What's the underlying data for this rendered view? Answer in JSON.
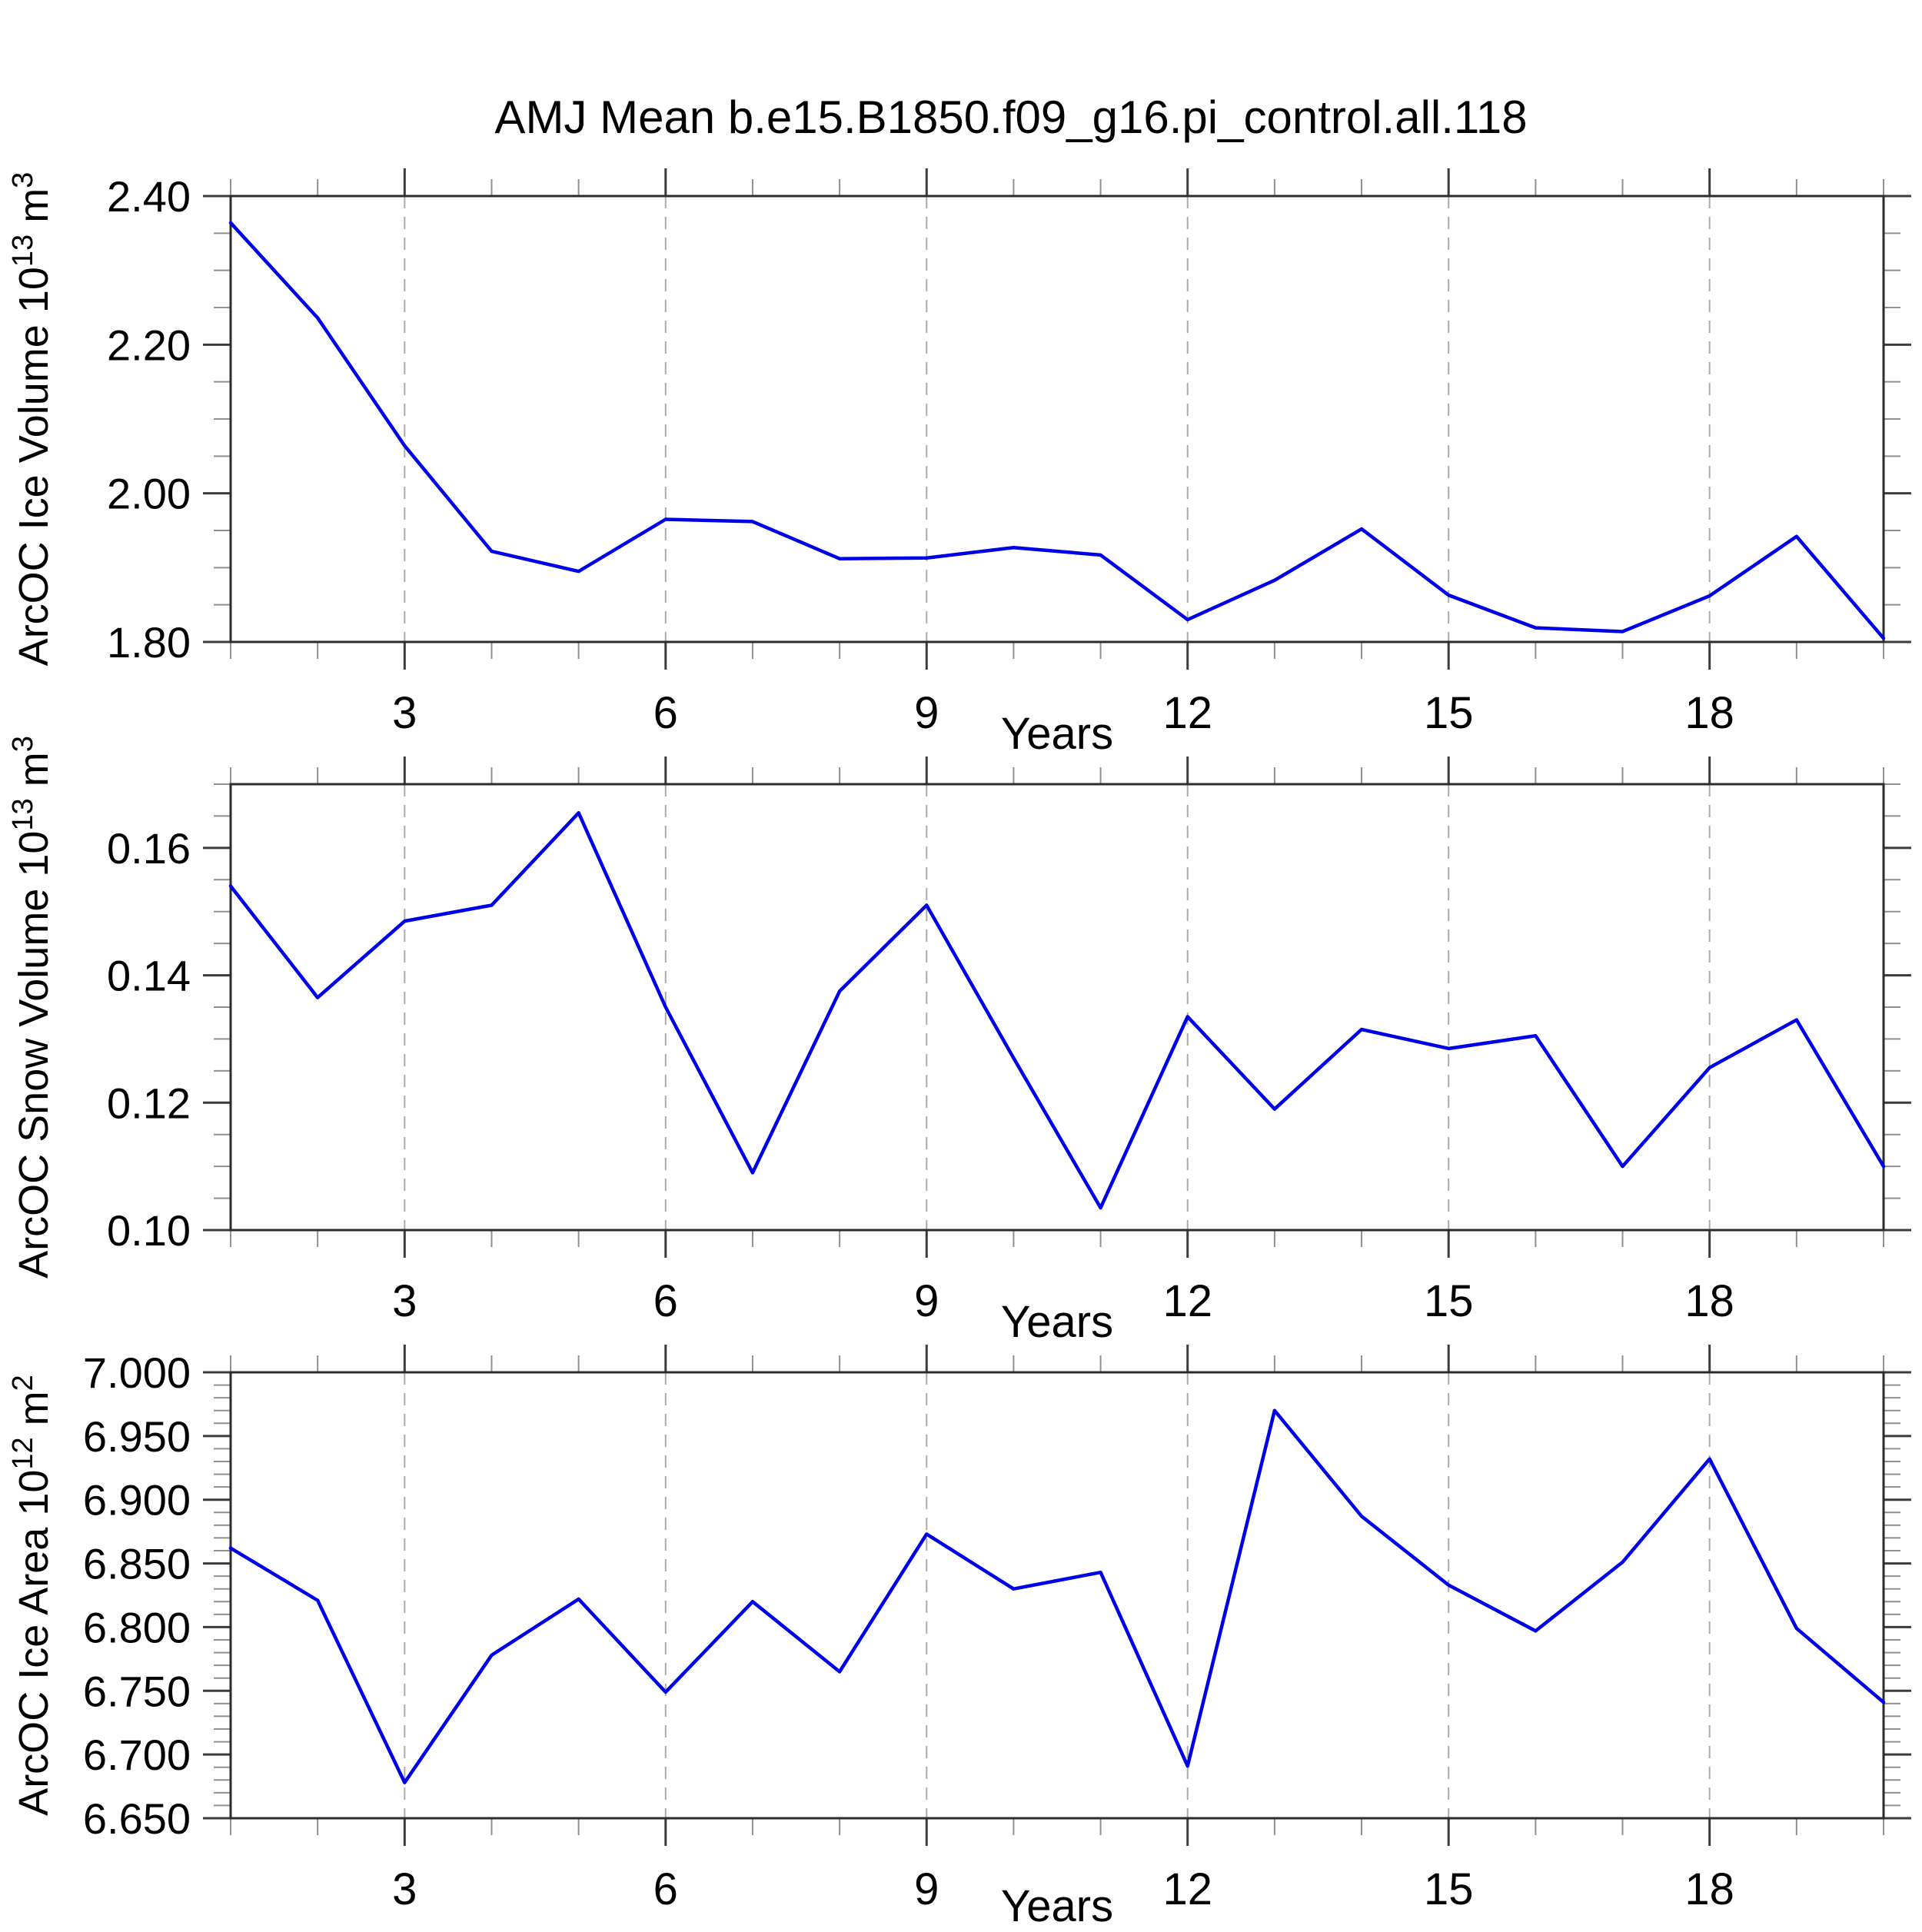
{
  "title": "AMJ Mean b.e15.B1850.f09_g16.pi_control.all.118",
  "style": {
    "line_color": "#0000e8",
    "frame_color": "#2c2c2c",
    "major_tick_color": "#3c3c3c",
    "minor_tick_color": "#909090",
    "grid_color": "#ababab",
    "text_color": "#000000",
    "background": "#ffffff"
  },
  "chart_data": [
    {
      "type": "line",
      "panel": "top",
      "xlabel": "Years",
      "ylabel_parts": {
        "pre": "ArcOC Ice Volume 10",
        "sup": "13",
        "mid": " m",
        "sup2": "3"
      },
      "x": [
        1,
        2,
        3,
        4,
        5,
        6,
        7,
        8,
        9,
        10,
        11,
        12,
        13,
        14,
        15,
        16,
        17,
        18,
        19,
        20
      ],
      "values": [
        2.364,
        2.236,
        2.064,
        1.922,
        1.895,
        1.965,
        1.962,
        1.912,
        1.913,
        1.927,
        1.917,
        1.83,
        1.883,
        1.952,
        1.863,
        1.819,
        1.814,
        1.862,
        1.942,
        1.805
      ],
      "xlim": [
        1,
        20
      ],
      "ylim": [
        1.8,
        2.4
      ],
      "xticks_major": [
        3,
        6,
        9,
        12,
        15,
        18
      ],
      "xtick_minor_step": 1,
      "yticks_major": [
        {
          "v": 2.4,
          "label": "2.40"
        },
        {
          "v": 2.2,
          "label": "2.20"
        },
        {
          "v": 2.0,
          "label": "2.00"
        },
        {
          "v": 1.8,
          "label": "1.80"
        }
      ],
      "ytick_minor_step": 0.05,
      "grid": "vertical-dashed",
      "legend": "none"
    },
    {
      "type": "line",
      "panel": "middle",
      "xlabel": "Years",
      "ylabel_parts": {
        "pre": "ArcOC Snow Volume 10",
        "sup": "13",
        "mid": " m",
        "sup2": "3"
      },
      "x": [
        1,
        2,
        3,
        4,
        5,
        6,
        7,
        8,
        9,
        10,
        11,
        12,
        13,
        14,
        15,
        16,
        17,
        18,
        19,
        20
      ],
      "values": [
        0.154,
        0.1365,
        0.1485,
        0.151,
        0.1655,
        0.135,
        0.109,
        0.1375,
        0.151,
        0.127,
        0.1035,
        0.1335,
        0.119,
        0.1315,
        0.1285,
        0.1305,
        0.11,
        0.1255,
        0.133,
        0.11
      ],
      "xlim": [
        1,
        20
      ],
      "ylim": [
        0.1,
        0.17
      ],
      "xticks_major": [
        3,
        6,
        9,
        12,
        15,
        18
      ],
      "xtick_minor_step": 1,
      "yticks_major": [
        {
          "v": 0.16,
          "label": "0.16"
        },
        {
          "v": 0.14,
          "label": "0.14"
        },
        {
          "v": 0.12,
          "label": "0.12"
        },
        {
          "v": 0.1,
          "label": "0.10"
        }
      ],
      "ytick_minor_step": 0.005,
      "grid": "vertical-dashed",
      "legend": "none"
    },
    {
      "type": "line",
      "panel": "bottom",
      "xlabel": "Years",
      "ylabel_parts": {
        "pre": "ArcOC Ice Area 10",
        "sup": "12",
        "mid": " m",
        "sup2": "2"
      },
      "x": [
        1,
        2,
        3,
        4,
        5,
        6,
        7,
        8,
        9,
        10,
        11,
        12,
        13,
        14,
        15,
        16,
        17,
        18,
        19,
        20
      ],
      "values": [
        6.862,
        6.821,
        6.678,
        6.778,
        6.822,
        6.749,
        6.82,
        6.765,
        6.873,
        6.83,
        6.843,
        6.691,
        6.97,
        6.887,
        6.833,
        6.797,
        6.851,
        6.932,
        6.799,
        6.741
      ],
      "xlim": [
        1,
        20
      ],
      "ylim": [
        6.65,
        7.0
      ],
      "xticks_major": [
        3,
        6,
        9,
        12,
        15,
        18
      ],
      "xtick_minor_step": 1,
      "yticks_major": [
        {
          "v": 7.0,
          "label": "7.000"
        },
        {
          "v": 6.95,
          "label": "6.950"
        },
        {
          "v": 6.9,
          "label": "6.900"
        },
        {
          "v": 6.85,
          "label": "6.850"
        },
        {
          "v": 6.8,
          "label": "6.800"
        },
        {
          "v": 6.75,
          "label": "6.750"
        },
        {
          "v": 6.7,
          "label": "6.700"
        },
        {
          "v": 6.65,
          "label": "6.650"
        }
      ],
      "ytick_minor_step": 0.01,
      "grid": "vertical-dashed",
      "legend": "none"
    }
  ]
}
